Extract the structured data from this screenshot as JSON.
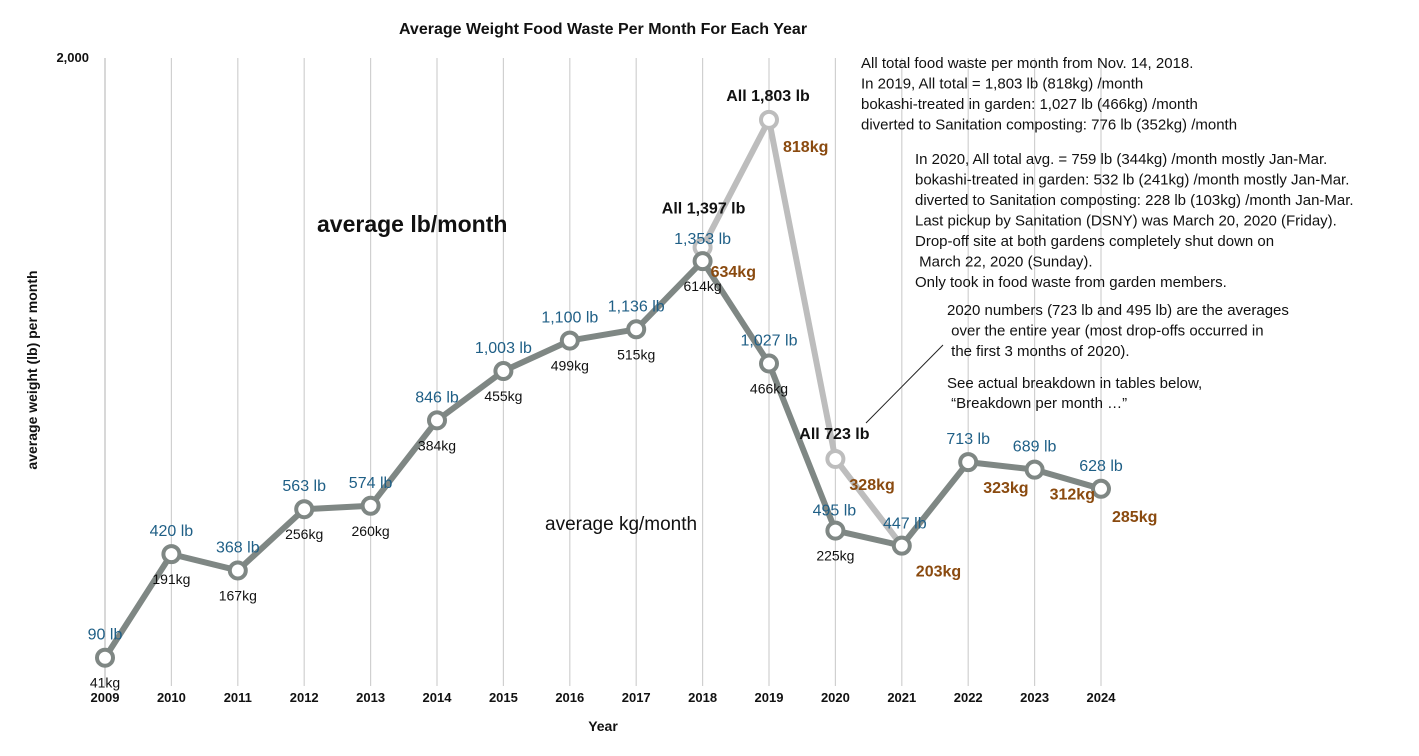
{
  "chart_data": {
    "type": "line",
    "title": "Average Weight Food Waste Per Month For Each Year",
    "xlabel": "Year",
    "ylabel": "average weight (lb) per month",
    "ylim": [
      0,
      2000
    ],
    "y_tick_label": "2,000",
    "grid": "vertical",
    "categories": [
      "2009",
      "2010",
      "2011",
      "2012",
      "2013",
      "2014",
      "2015",
      "2016",
      "2017",
      "2018",
      "2019",
      "2020",
      "2021",
      "2022",
      "2023",
      "2024"
    ],
    "series": [
      {
        "values": [
          90,
          420,
          368,
          563,
          574,
          846,
          1003,
          1100,
          1136,
          1353,
          1027,
          495,
          447,
          713,
          689,
          628
        ],
        "lb_labels": [
          "90 lb",
          "420 lb",
          "368 lb",
          "563 lb",
          "574 lb",
          "846 lb",
          "1,003 lb",
          "1,100 lb",
          "1,136 lb",
          "1,353 lb",
          "1,027 lb",
          "495 lb",
          "447 lb",
          "713 lb",
          "689 lb",
          "628 lb"
        ],
        "kg_labels": [
          "41kg",
          "191kg",
          "167kg",
          "256kg",
          "260kg",
          "384kg",
          "455kg",
          "499kg",
          "515kg",
          "614kg",
          "466kg",
          "225kg",
          "",
          "",
          "",
          ""
        ],
        "color": "#7f8784"
      },
      {
        "x": [
          "2018",
          "2019",
          "2020",
          "2021"
        ],
        "values": [
          1397,
          1803,
          723,
          447
        ],
        "all_labels": [
          "All 1,397 lb",
          "All 1,803 lb",
          "All 723 lb",
          ""
        ],
        "color": "#bdbdbd"
      }
    ],
    "kg_bold_labels": [
      {
        "x": "2018",
        "text": "634kg"
      },
      {
        "x": "2019",
        "text": "818kg"
      },
      {
        "x": "2020",
        "text": "328kg"
      },
      {
        "x": "2021",
        "text": "203kg"
      },
      {
        "x": "2022",
        "text": "323kg"
      },
      {
        "x": "2023",
        "text": "312kg"
      },
      {
        "x": "2024",
        "text": "285kg"
      }
    ],
    "annotations": {
      "avg_lb": "average lb/month",
      "avg_kg": "average kg/month",
      "note_2019": [
        "All total food waste per month from Nov. 14, 2018.",
        "In 2019, All total = 1,803 lb (818kg) /month",
        "bokashi-treated in garden: 1,027 lb (466kg) /month",
        "diverted to Sanitation composting: 776 lb (352kg) /month"
      ],
      "note_2020": [
        "In 2020, All total avg. = 759 lb (344kg) /month mostly Jan-Mar.",
        "bokashi-treated in garden: 532 lb (241kg) /month mostly Jan-Mar.",
        "diverted to Sanitation composting: 228 lb (103kg) /month Jan-Mar.",
        "Last pickup by Sanitation (DSNY) was March 20, 2020 (Friday).",
        "Drop-off site at both gardens completely shut down on",
        "   March 22, 2020 (Sunday).",
        "Only took in food waste from garden members."
      ],
      "note_avg": [
        "2020 numbers (723 lb and 495 lb) are the averages",
        " over the entire year (most drop-offs occurred in",
        " the first 3 months of 2020)."
      ],
      "note_see": [
        "See actual breakdown in tables below,",
        " “Breakdown per month …”"
      ]
    }
  }
}
